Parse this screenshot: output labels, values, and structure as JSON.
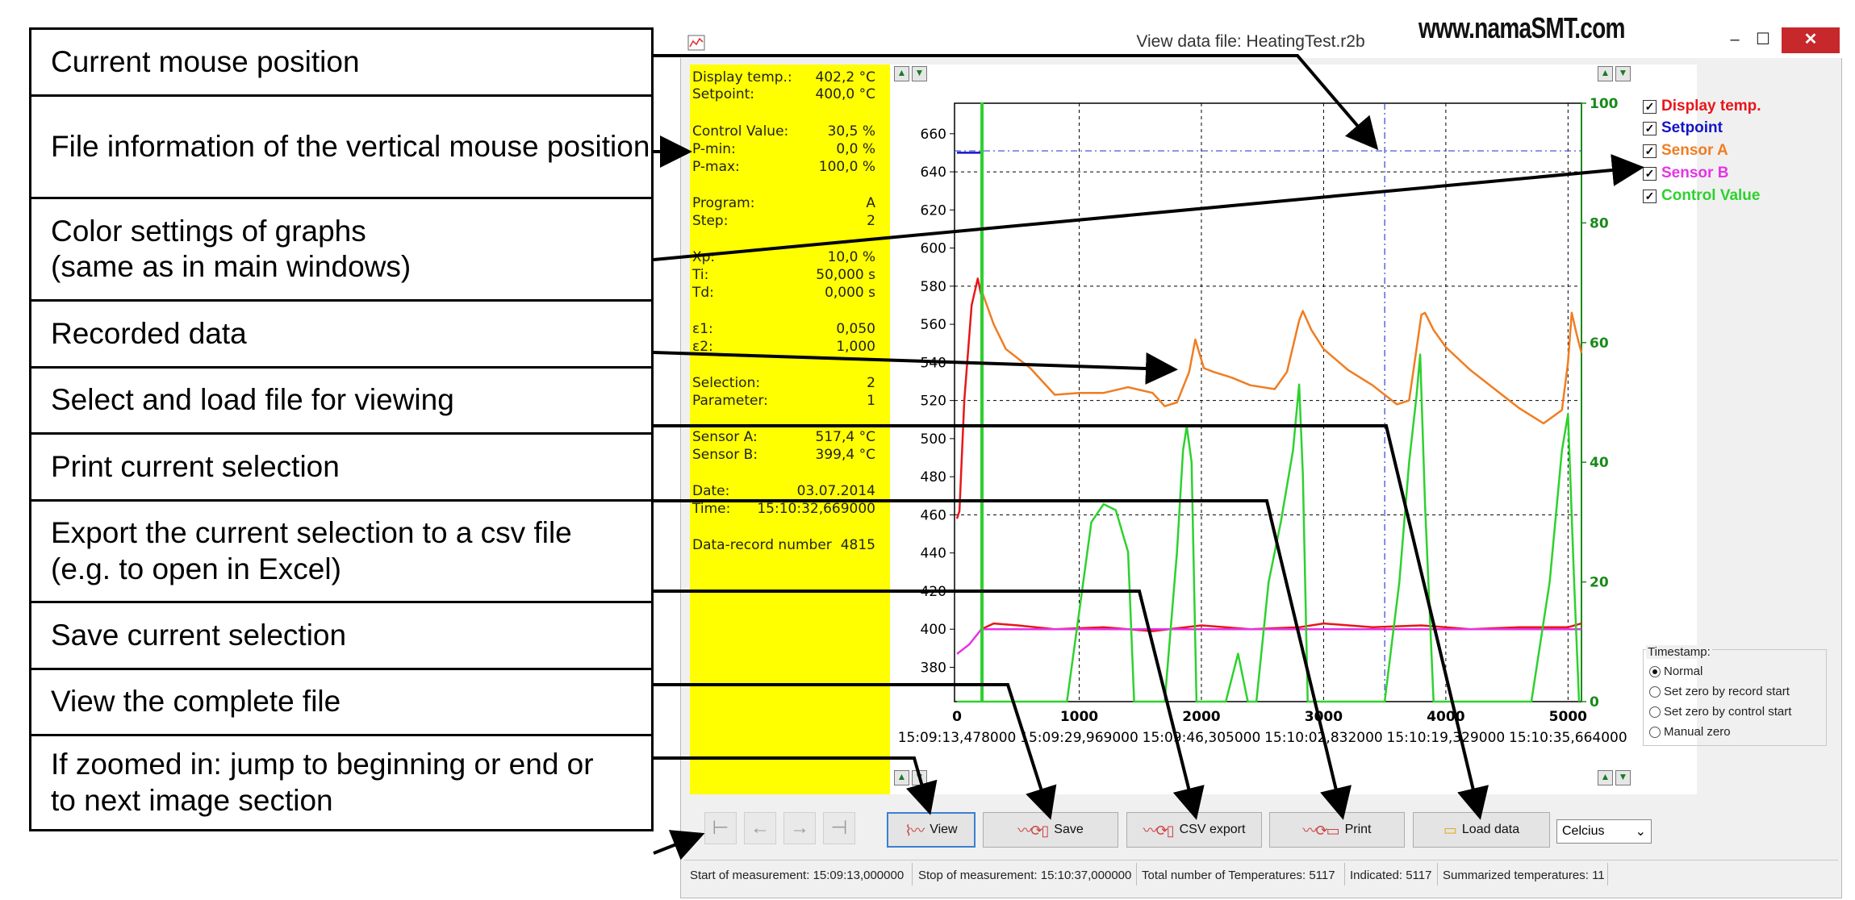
{
  "callouts": [
    "Current mouse position",
    "File information of the vertical mouse position",
    "Color settings of graphs\n(same as in main windows)",
    "Recorded data",
    "Select and load file for viewing",
    "Print current selection",
    "Export the current selection to a csv file\n(e.g. to open in Excel)",
    "Save current selection",
    "View the complete file",
    "If zoomed in: jump to beginning or end or\nto next image section"
  ],
  "window": {
    "title": "View data file: HeatingTest.r2b",
    "brand": "www.namaSMT.com",
    "minimize": "–",
    "maximize": "☐",
    "close": "✕"
  },
  "info": {
    "display_temp_label": "Display temp.:",
    "display_temp_value": "402,2 °C",
    "setpoint_label": "Setpoint:",
    "setpoint_value": "400,0 °C",
    "control_value_label": "Control Value:",
    "control_value_value": "30,5 %",
    "pmin_label": "P-min:",
    "pmin_value": "0,0 %",
    "pmax_label": "P-max:",
    "pmax_value": "100,0 %",
    "program_label": "Program:",
    "program_value": "A",
    "step_label": "Step:",
    "step_value": "2",
    "xp_label": "Xp:",
    "xp_value": "10,0 %",
    "ti_label": "Ti:",
    "ti_value": "50,000 s",
    "td_label": "Td:",
    "td_value": "0,000 s",
    "e1_label": "ε1:",
    "e1_value": "0,050",
    "e2_label": "ε2:",
    "e2_value": "1,000",
    "selection_label": "Selection:",
    "selection_value": "2",
    "parameter_label": "Parameter:",
    "parameter_value": "1",
    "sensor_a_label": "Sensor A:",
    "sensor_a_value": "517,4 °C",
    "sensor_b_label": "Sensor B:",
    "sensor_b_value": "399,4 °C",
    "date_label": "Date:",
    "date_value": "03.07.2014",
    "time_label": "Time:",
    "time_value": "15:10:32,669000",
    "record_label": "Data-record number",
    "record_value": "4815"
  },
  "legend": [
    {
      "label": "Display temp.",
      "color": "#e8161b",
      "checked": "✓"
    },
    {
      "label": "Setpoint",
      "color": "#1414c8",
      "checked": "✓"
    },
    {
      "label": "Sensor A",
      "color": "#f07d21",
      "checked": "✓"
    },
    {
      "label": "Sensor B",
      "color": "#e633e6",
      "checked": "✓"
    },
    {
      "label": "Control Value",
      "color": "#2ed12e",
      "checked": "✓"
    }
  ],
  "timestamp": {
    "title": "Timestamp:",
    "options": [
      "Normal",
      "Set zero by record start",
      "Set zero by control start",
      "Manual zero"
    ],
    "selected": "Normal"
  },
  "toolbar": {
    "nav_first": "⊢",
    "nav_prev": "←",
    "nav_next": "→",
    "nav_last": "⊣",
    "view": "View",
    "save": "Save",
    "csv": "CSV export",
    "print": "Print",
    "load": "Load data",
    "unit": "Celcius"
  },
  "status": {
    "start": "Start of measurement: 15:09:13,000000",
    "stop": "Stop of measurement: 15:10:37,000000",
    "total": "Total number of Temperatures: 5117",
    "indicated": "Indicated: 5117",
    "summarized": "Summarized temperatures: 11"
  },
  "chart_data": {
    "type": "line",
    "x_range": [
      -20,
      5110
    ],
    "y_left_range": [
      362,
      676
    ],
    "y_right_range": [
      0,
      100
    ],
    "y_left_ticks": [
      380,
      400,
      420,
      440,
      460,
      480,
      500,
      520,
      540,
      560,
      580,
      600,
      620,
      640,
      660
    ],
    "y_right_ticks": [
      0,
      20,
      40,
      60,
      80,
      100
    ],
    "x_ticks": [
      0,
      1000,
      2000,
      3000,
      4000,
      5000
    ],
    "x_tick_labels": [
      "15:09:13,478000",
      "15:09:29,969000",
      "15:09:46,305000",
      "15:10:02,832000",
      "15:10:19,329000",
      "15:10:35,664000"
    ],
    "grid": true,
    "cursor": {
      "x": 3500,
      "y": 651
    },
    "series": [
      {
        "name": "Setpoint",
        "color": "#1414c8",
        "axis": "left",
        "points": [
          [
            0,
            650
          ],
          [
            200,
            650
          ],
          [
            200,
            400
          ],
          [
            5110,
            400
          ]
        ]
      },
      {
        "name": "Display temp.",
        "color": "#e8161b",
        "axis": "left",
        "points": [
          [
            0,
            458
          ],
          [
            20,
            462
          ],
          [
            60,
            520
          ],
          [
            120,
            570
          ],
          [
            170,
            584
          ],
          [
            200,
            575
          ],
          [
            200,
            400
          ],
          [
            300,
            403
          ],
          [
            500,
            402
          ],
          [
            800,
            400
          ],
          [
            1200,
            401
          ],
          [
            1600,
            399
          ],
          [
            2000,
            402
          ],
          [
            2400,
            400
          ],
          [
            2800,
            401
          ],
          [
            3000,
            403
          ],
          [
            3400,
            401
          ],
          [
            3800,
            402
          ],
          [
            4200,
            400
          ],
          [
            4600,
            401
          ],
          [
            5000,
            401
          ],
          [
            5110,
            403
          ]
        ]
      },
      {
        "name": "Sensor A",
        "color": "#f07d21",
        "axis": "left",
        "points": [
          [
            200,
            578
          ],
          [
            300,
            560
          ],
          [
            400,
            547
          ],
          [
            600,
            537
          ],
          [
            800,
            523
          ],
          [
            1000,
            524
          ],
          [
            1200,
            524
          ],
          [
            1400,
            527
          ],
          [
            1600,
            524
          ],
          [
            1700,
            517
          ],
          [
            1800,
            519
          ],
          [
            1900,
            535
          ],
          [
            1950,
            552
          ],
          [
            2020,
            537
          ],
          [
            2100,
            535
          ],
          [
            2250,
            532
          ],
          [
            2400,
            528
          ],
          [
            2600,
            526
          ],
          [
            2700,
            535
          ],
          [
            2800,
            562
          ],
          [
            2830,
            567
          ],
          [
            2900,
            557
          ],
          [
            3000,
            547
          ],
          [
            3200,
            536
          ],
          [
            3400,
            528
          ],
          [
            3600,
            518
          ],
          [
            3700,
            520
          ],
          [
            3800,
            565
          ],
          [
            3830,
            566
          ],
          [
            3900,
            557
          ],
          [
            4000,
            548
          ],
          [
            4200,
            536
          ],
          [
            4400,
            526
          ],
          [
            4600,
            516
          ],
          [
            4800,
            508
          ],
          [
            4950,
            515
          ],
          [
            5000,
            540
          ],
          [
            5030,
            566
          ],
          [
            5070,
            555
          ],
          [
            5110,
            545
          ]
        ]
      },
      {
        "name": "Sensor B",
        "color": "#e633e6",
        "axis": "left",
        "points": [
          [
            0,
            387
          ],
          [
            100,
            392
          ],
          [
            200,
            400
          ],
          [
            5110,
            400
          ]
        ]
      },
      {
        "name": "Control Value",
        "color": "#2ed12e",
        "axis": "right",
        "points": [
          [
            0,
            0
          ],
          [
            200,
            0
          ],
          [
            200,
            100
          ],
          [
            210,
            100
          ],
          [
            210,
            0
          ],
          [
            800,
            0
          ],
          [
            900,
            0
          ],
          [
            1000,
            15
          ],
          [
            1100,
            30
          ],
          [
            1200,
            33
          ],
          [
            1300,
            32
          ],
          [
            1400,
            25
          ],
          [
            1450,
            0
          ],
          [
            1700,
            0
          ],
          [
            1800,
            25
          ],
          [
            1850,
            42
          ],
          [
            1880,
            46
          ],
          [
            1920,
            40
          ],
          [
            1960,
            0
          ],
          [
            2200,
            0
          ],
          [
            2300,
            8
          ],
          [
            2380,
            0
          ],
          [
            2450,
            0
          ],
          [
            2550,
            20
          ],
          [
            2650,
            30
          ],
          [
            2750,
            42
          ],
          [
            2800,
            53
          ],
          [
            2830,
            38
          ],
          [
            2870,
            0
          ],
          [
            3500,
            0
          ],
          [
            3620,
            20
          ],
          [
            3700,
            40
          ],
          [
            3760,
            51
          ],
          [
            3790,
            58
          ],
          [
            3830,
            33
          ],
          [
            3900,
            0
          ],
          [
            4700,
            0
          ],
          [
            4850,
            20
          ],
          [
            4950,
            42
          ],
          [
            5000,
            48
          ],
          [
            5050,
            20
          ],
          [
            5090,
            0
          ]
        ]
      }
    ]
  }
}
